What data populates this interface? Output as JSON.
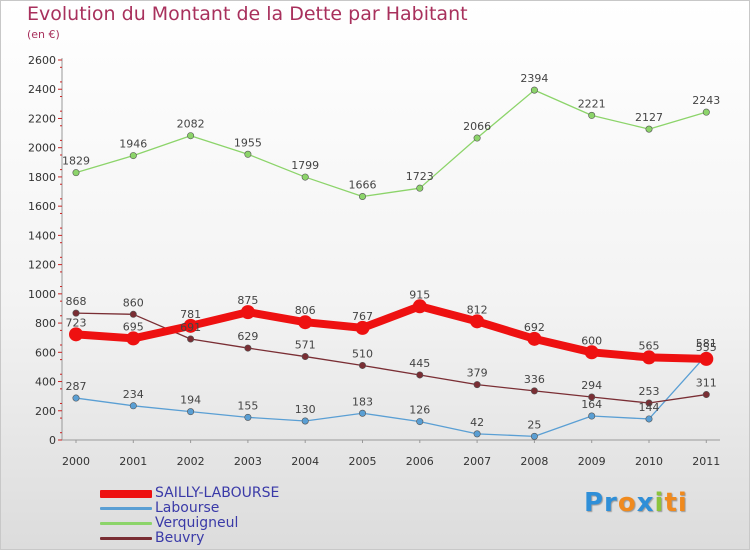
{
  "title": "Evolution du Montant de la Dette par Habitant",
  "subtitle": "(en €)",
  "logo": "Proxiti",
  "logo_parts": [
    "Pr",
    "o",
    "x",
    "i",
    "ti"
  ],
  "chart_data": {
    "type": "line",
    "categories": [
      "2000",
      "2001",
      "2002",
      "2003",
      "2004",
      "2005",
      "2006",
      "2007",
      "2008",
      "2009",
      "2010",
      "2011"
    ],
    "ylim": [
      0,
      2600
    ],
    "yticks": [
      0,
      200,
      400,
      600,
      800,
      1000,
      1200,
      1400,
      1600,
      1800,
      2000,
      2200,
      2400,
      2600
    ],
    "grid": false,
    "legend_position": "bottom-left",
    "series": [
      {
        "name": "SAILLY-LABOURSE",
        "color": "#ee1111",
        "values": [
          723,
          695,
          781,
          875,
          806,
          767,
          915,
          812,
          692,
          600,
          565,
          555
        ],
        "labels": [
          "723",
          "695",
          "781",
          "875",
          "806",
          "767",
          "915",
          "812",
          "692",
          "600",
          "565",
          "555"
        ]
      },
      {
        "name": "Labourse",
        "color": "#5a9fd4",
        "values": [
          287,
          234,
          194,
          155,
          130,
          183,
          126,
          42,
          25,
          164,
          144,
          581
        ],
        "labels": [
          "287",
          "234",
          "194",
          "155",
          "130",
          "183",
          "126",
          "42",
          "25",
          "164",
          "144",
          "581"
        ]
      },
      {
        "name": "Verquigneul",
        "color": "#8cd46a",
        "values": [
          1829,
          1946,
          2082,
          1955,
          1799,
          1666,
          1723,
          2066,
          2394,
          2221,
          2127,
          2243
        ],
        "labels": [
          "1829",
          "1946",
          "2082",
          "1955",
          "1799",
          "1666",
          "1723",
          "2066",
          "2394",
          "2221",
          "2127",
          "2243"
        ]
      },
      {
        "name": "Beuvry",
        "color": "#7a2e34",
        "values": [
          868,
          860,
          691,
          629,
          571,
          510,
          445,
          379,
          336,
          294,
          253,
          311
        ],
        "labels": [
          "868",
          "860",
          "691",
          "629",
          "571",
          "510",
          "445",
          "379",
          "336",
          "294",
          "253",
          "311"
        ]
      }
    ]
  }
}
